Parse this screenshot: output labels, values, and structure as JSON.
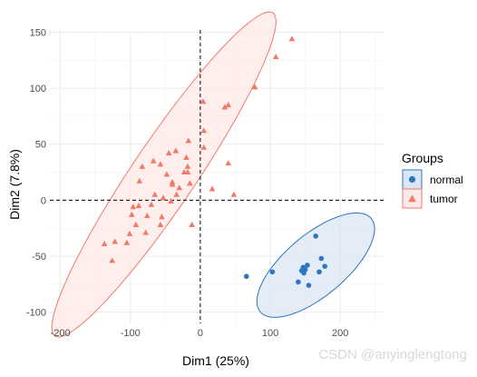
{
  "chart_data": {
    "type": "scatter",
    "title": "",
    "xlabel": "Dim1 (25%)",
    "ylabel": "Dim2 (7.8%)",
    "xlim": [
      -215,
      262
    ],
    "ylim": [
      -110,
      152
    ],
    "x_ticks": [
      -200,
      -100,
      0,
      100,
      200
    ],
    "x_tick_labels": [
      "-200",
      "-100",
      "0",
      "100",
      "200"
    ],
    "y_ticks": [
      -100,
      -50,
      0,
      50,
      100,
      150
    ],
    "y_tick_labels": [
      "-100",
      "-50",
      "0",
      "50",
      "100",
      "150"
    ],
    "grid": true,
    "reference_lines": {
      "x": 0,
      "y": 0,
      "style": "dashed"
    },
    "legend": {
      "title": "Groups",
      "placement": "right"
    },
    "series": [
      {
        "name": "normal",
        "marker": "circle",
        "color": "#2E74C0",
        "fill": "#D9E6F4",
        "points": [
          [
            66,
            -68
          ],
          [
            103,
            -64
          ],
          [
            140,
            -73
          ],
          [
            145,
            -63
          ],
          [
            147,
            -60
          ],
          [
            148,
            -65
          ],
          [
            150,
            -62
          ],
          [
            153,
            -58
          ],
          [
            155,
            -76
          ],
          [
            165,
            -32
          ],
          [
            170,
            -64
          ],
          [
            173,
            -52
          ],
          [
            178,
            -59
          ]
        ],
        "ellipse": {
          "center": [
            165,
            -58
          ],
          "semi_major": 91,
          "semi_minor": 31,
          "angle_deg": 24
        }
      },
      {
        "name": "tumor",
        "marker": "triangle",
        "color": "#F07A6A",
        "fill": "#FDE9E7",
        "points": [
          [
            131,
            144
          ],
          [
            108,
            128
          ],
          [
            78,
            101
          ],
          [
            40,
            85
          ],
          [
            35,
            83
          ],
          [
            4,
            88
          ],
          [
            5,
            62
          ],
          [
            5,
            47
          ],
          [
            40,
            33
          ],
          [
            -17,
            53
          ],
          [
            -20,
            38
          ],
          [
            -35,
            44
          ],
          [
            -45,
            42
          ],
          [
            -18,
            30
          ],
          [
            -18,
            25
          ],
          [
            -23,
            25
          ],
          [
            -48,
            23
          ],
          [
            -57,
            32
          ],
          [
            -67,
            35
          ],
          [
            -83,
            30
          ],
          [
            -87,
            17
          ],
          [
            -40,
            16
          ],
          [
            -40,
            14
          ],
          [
            -30,
            11
          ],
          [
            -15,
            15
          ],
          [
            17,
            10
          ],
          [
            48,
            5
          ],
          [
            -34,
            5
          ],
          [
            -65,
            5
          ],
          [
            -53,
            2
          ],
          [
            -42,
            -1
          ],
          [
            -70,
            -4
          ],
          [
            -88,
            -5
          ],
          [
            -96,
            -6
          ],
          [
            -98,
            -13
          ],
          [
            -76,
            -14
          ],
          [
            -92,
            -22
          ],
          [
            -55,
            -15
          ],
          [
            -57,
            -22
          ],
          [
            -12,
            -22
          ],
          [
            -78,
            -29
          ],
          [
            -101,
            -30
          ],
          [
            -105,
            -38
          ],
          [
            -122,
            -37
          ],
          [
            -137,
            -39
          ],
          [
            -126,
            -54
          ]
        ],
        "ellipse": {
          "center": [
            -52,
            23
          ],
          "semi_major": 213,
          "semi_minor": 37,
          "angle_deg": 42
        }
      }
    ]
  },
  "watermark": "CSDN @anyinglengtong"
}
